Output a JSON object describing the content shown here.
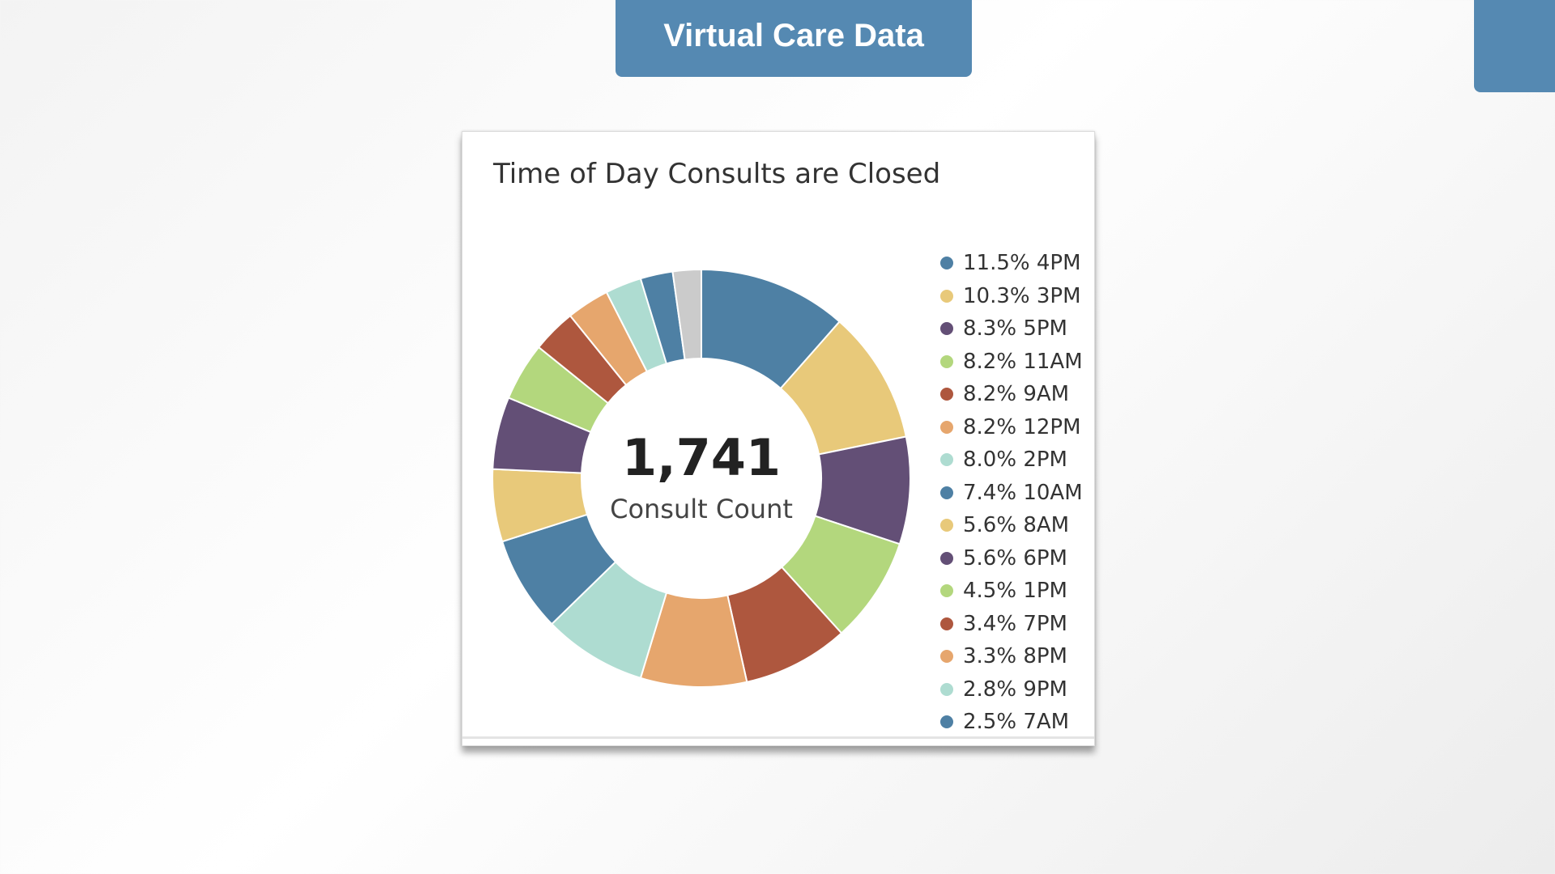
{
  "header": {
    "title": "Virtual Care Data"
  },
  "chart_data": {
    "type": "pie",
    "title": "Time of Day Consults are Closed",
    "center": {
      "value": "1,741",
      "label": "Consult Count"
    },
    "legend_position": "right",
    "slices": [
      {
        "label": "4PM",
        "percent": 11.5,
        "percent_text": "11.5%",
        "color": "#4e80a4"
      },
      {
        "label": "3PM",
        "percent": 10.3,
        "percent_text": "10.3%",
        "color": "#e8c97a"
      },
      {
        "label": "5PM",
        "percent": 8.3,
        "percent_text": "8.3%",
        "color": "#634f76"
      },
      {
        "label": "11AM",
        "percent": 8.2,
        "percent_text": "8.2%",
        "color": "#b3d77d"
      },
      {
        "label": "9AM",
        "percent": 8.2,
        "percent_text": "8.2%",
        "color": "#ae573e"
      },
      {
        "label": "12PM",
        "percent": 8.2,
        "percent_text": "8.2%",
        "color": "#e6a66d"
      },
      {
        "label": "2PM",
        "percent": 8.0,
        "percent_text": "8.0%",
        "color": "#aedcd1"
      },
      {
        "label": "10AM",
        "percent": 7.4,
        "percent_text": "7.4%",
        "color": "#4e80a4"
      },
      {
        "label": "8AM",
        "percent": 5.6,
        "percent_text": "5.6%",
        "color": "#e8c97a"
      },
      {
        "label": "6PM",
        "percent": 5.6,
        "percent_text": "5.6%",
        "color": "#634f76"
      },
      {
        "label": "1PM",
        "percent": 4.5,
        "percent_text": "4.5%",
        "color": "#b3d77d"
      },
      {
        "label": "7PM",
        "percent": 3.4,
        "percent_text": "3.4%",
        "color": "#ae573e"
      },
      {
        "label": "8PM",
        "percent": 3.3,
        "percent_text": "3.3%",
        "color": "#e6a66d"
      },
      {
        "label": "9PM",
        "percent": 2.8,
        "percent_text": "2.8%",
        "color": "#aedcd1"
      },
      {
        "label": "7AM",
        "percent": 2.5,
        "percent_text": "2.5%",
        "color": "#4e80a4"
      }
    ],
    "other_slice": {
      "percent": 2.2,
      "color": "#cbcbcb"
    }
  }
}
